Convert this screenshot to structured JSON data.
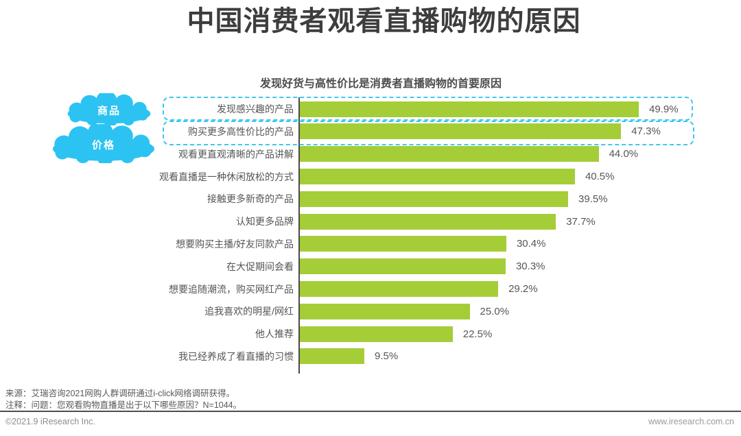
{
  "page": {
    "title": "中国消费者观看直播购物的原因",
    "background": "#ffffff",
    "title_color": "#3d3d3d"
  },
  "chart_data": {
    "type": "bar",
    "orientation": "horizontal",
    "title": "发现好货与高性价比是消费者直播购物的首要原因",
    "categories": [
      "发现感兴趣的产品",
      "购买更多高性价比的产品",
      "观看更直观清晰的产品讲解",
      "观看直播是一种休闲放松的方式",
      "接触更多新奇的产品",
      "认知更多品牌",
      "想要购买主播/好友同款产品",
      "在大促期间会看",
      "想要追随潮流，购买网红产品",
      "追我喜欢的明星/网红",
      "他人推荐",
      "我已经养成了看直播的习惯"
    ],
    "values": [
      49.9,
      47.3,
      44.0,
      40.5,
      39.5,
      37.7,
      30.4,
      30.3,
      29.2,
      25.0,
      22.5,
      9.5
    ],
    "value_labels": [
      "49.9%",
      "47.3%",
      "44.0%",
      "40.5%",
      "39.5%",
      "37.7%",
      "30.4%",
      "30.3%",
      "29.2%",
      "25.0%",
      "22.5%",
      "9.5%"
    ],
    "xlim": [
      0,
      52
    ],
    "grid": false,
    "legend": false,
    "bar_color": "#a5cd37",
    "highlighted_rows": [
      0,
      1
    ]
  },
  "annotations": {
    "cloud_color": "#2cc3f2",
    "highlight_border_color": "#3ec7f3",
    "clouds": [
      {
        "label": "商品"
      },
      {
        "label": "价格"
      }
    ]
  },
  "footer": {
    "source": "来源：艾瑞咨询2021网购人群调研通过i-click网络调研获得。",
    "note": "注释：问题：您观看购物直播是出于以下哪些原因？N=1044。",
    "copyright": "©2021.9 iResearch Inc.",
    "website": "www.iresearch.com.cn"
  }
}
